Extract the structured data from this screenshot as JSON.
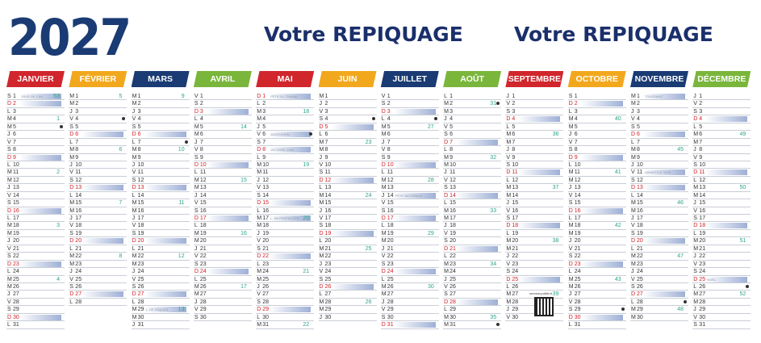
{
  "year": "2027",
  "repiquage": [
    "Votre REPIQUAGE",
    "Votre REPIQUAGE"
  ],
  "months": [
    {
      "name": "JANVIER",
      "color": "#d0262c",
      "start": 5,
      "len": 31,
      "weeks": [
        [
          1,
          "53"
        ],
        [
          4,
          "1"
        ],
        [
          11,
          "2"
        ],
        [
          18,
          "3"
        ],
        [
          25,
          "4"
        ]
      ],
      "events": [
        [
          1,
          "JOUR DE L'AN"
        ]
      ],
      "dots": [
        5
      ]
    },
    {
      "name": "FÉVRIER",
      "color": "#f2a81d",
      "start": 1,
      "len": 28,
      "weeks": [
        [
          1,
          "5"
        ],
        [
          8,
          "6"
        ],
        [
          15,
          "7"
        ],
        [
          22,
          "8"
        ]
      ],
      "events": [],
      "dots": [
        4
      ]
    },
    {
      "name": "MARS",
      "color": "#1a3b73",
      "start": 1,
      "len": 31,
      "weeks": [
        [
          1,
          "9"
        ],
        [
          8,
          "10"
        ],
        [
          15,
          "11"
        ],
        [
          22,
          "12"
        ],
        [
          29,
          "13"
        ]
      ],
      "events": [
        [
          29,
          "L. DE PÂQUES"
        ]
      ],
      "dots": [
        7
      ]
    },
    {
      "name": "AVRIL",
      "color": "#7ab63b",
      "start": 4,
      "len": 30,
      "weeks": [
        [
          5,
          "14"
        ],
        [
          12,
          "15"
        ],
        [
          19,
          "16"
        ],
        [
          26,
          "17"
        ]
      ],
      "events": [],
      "dots": []
    },
    {
      "name": "MAI",
      "color": "#d0262c",
      "start": 6,
      "len": 31,
      "weeks": [
        [
          3,
          "18"
        ],
        [
          10,
          "19"
        ],
        [
          17,
          "20"
        ],
        [
          24,
          "21"
        ],
        [
          31,
          "22"
        ]
      ],
      "events": [
        [
          1,
          "FÊTE DU TRAVAIL"
        ],
        [
          6,
          "ASCENSION"
        ],
        [
          8,
          "VICTOIRE 1945"
        ],
        [
          17,
          "L. DE PENTECÔTE"
        ]
      ],
      "dots": [
        6
      ]
    },
    {
      "name": "JUIN",
      "color": "#f2a81d",
      "start": 2,
      "len": 30,
      "weeks": [
        [
          7,
          "23"
        ],
        [
          14,
          "24"
        ],
        [
          21,
          "25"
        ],
        [
          28,
          "26"
        ]
      ],
      "events": [],
      "dots": [
        4
      ]
    },
    {
      "name": "JUILLET",
      "color": "#1a3b73",
      "start": 4,
      "len": 31,
      "weeks": [
        [
          5,
          "27"
        ],
        [
          12,
          "28"
        ],
        [
          19,
          "29"
        ],
        [
          26,
          "30"
        ]
      ],
      "events": [
        [
          14,
          "FÊTE NATIONALE"
        ]
      ],
      "dots": [
        4
      ]
    },
    {
      "name": "AOÛT",
      "color": "#7ab63b",
      "start": 0,
      "len": 31,
      "weeks": [
        [
          2,
          "31"
        ],
        [
          9,
          "32"
        ],
        [
          16,
          "33"
        ],
        [
          23,
          "34"
        ],
        [
          30,
          "35"
        ]
      ],
      "events": [],
      "dots": [
        2,
        31
      ]
    },
    {
      "name": "SEPTEMBRE",
      "color": "#d0262c",
      "start": 3,
      "len": 30,
      "weeks": [
        [
          6,
          "36"
        ],
        [
          13,
          "37"
        ],
        [
          20,
          "38"
        ],
        [
          27,
          "39"
        ]
      ],
      "events": [],
      "dots": []
    },
    {
      "name": "OCTOBRE",
      "color": "#f2a81d",
      "start": 5,
      "len": 31,
      "weeks": [
        [
          4,
          "40"
        ],
        [
          11,
          "41"
        ],
        [
          18,
          "42"
        ],
        [
          25,
          "43"
        ]
      ],
      "events": [],
      "dots": [
        29
      ]
    },
    {
      "name": "NOVEMBRE",
      "color": "#1a3b73",
      "start": 1,
      "len": 30,
      "weeks": [
        [
          8,
          "45"
        ],
        [
          15,
          "46"
        ],
        [
          22,
          "47"
        ],
        [
          29,
          "48"
        ]
      ],
      "events": [
        [
          1,
          "TOUSSAINT"
        ],
        [
          11,
          "ARMISTICE 1918"
        ]
      ],
      "dots": [
        28
      ]
    },
    {
      "name": "DÉCEMBRE",
      "color": "#7ab63b",
      "start": 3,
      "len": 31,
      "weeks": [
        [
          6,
          "49"
        ],
        [
          13,
          "50"
        ],
        [
          20,
          "51"
        ],
        [
          27,
          "52"
        ]
      ],
      "events": [
        [
          25,
          "NOËL"
        ]
      ],
      "dots": [
        26
      ]
    }
  ],
  "day_letters": [
    "L",
    "M",
    "M",
    "J",
    "V",
    "S",
    "D"
  ],
  "qr_caption": "service-public.fr"
}
